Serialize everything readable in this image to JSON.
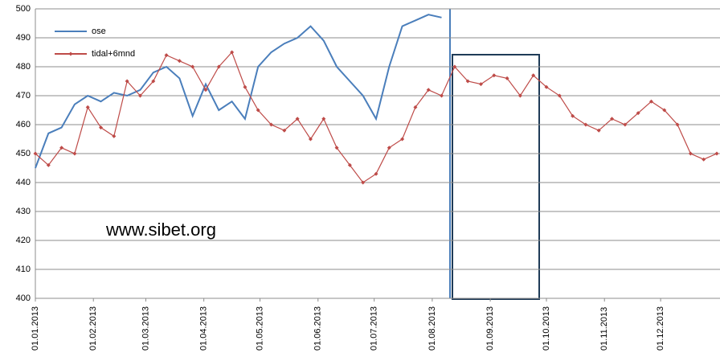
{
  "chart_data": {
    "type": "line",
    "x": [
      "2013-01-01",
      "2013-01-08",
      "2013-01-15",
      "2013-01-22",
      "2013-01-29",
      "2013-02-05",
      "2013-02-12",
      "2013-02-19",
      "2013-02-26",
      "2013-03-05",
      "2013-03-12",
      "2013-03-19",
      "2013-03-26",
      "2013-04-02",
      "2013-04-09",
      "2013-04-16",
      "2013-04-23",
      "2013-04-30",
      "2013-05-07",
      "2013-05-14",
      "2013-05-21",
      "2013-05-28",
      "2013-06-04",
      "2013-06-11",
      "2013-06-18",
      "2013-06-25",
      "2013-07-02",
      "2013-07-09",
      "2013-07-16",
      "2013-07-23",
      "2013-07-30",
      "2013-08-06",
      "2013-08-13",
      "2013-08-20",
      "2013-08-27",
      "2013-09-03",
      "2013-09-10",
      "2013-09-17",
      "2013-09-24",
      "2013-10-01",
      "2013-10-08",
      "2013-10-15",
      "2013-10-22",
      "2013-10-29",
      "2013-11-05",
      "2013-11-12",
      "2013-11-19",
      "2013-11-26",
      "2013-12-03",
      "2013-12-10",
      "2013-12-17",
      "2013-12-24",
      "2013-12-31"
    ],
    "series": [
      {
        "name": "ose",
        "color": "#4a7ebb",
        "markers": false,
        "values": [
          445,
          457,
          459,
          467,
          470,
          468,
          471,
          470,
          472,
          478,
          480,
          476,
          463,
          474,
          465,
          468,
          462,
          480,
          485,
          488,
          490,
          494,
          489,
          480,
          475,
          470,
          462,
          480,
          494,
          496,
          498,
          497,
          null,
          null,
          null,
          null,
          null,
          null,
          null,
          null,
          null,
          null,
          null,
          null,
          null,
          null,
          null,
          null,
          null,
          null,
          null,
          null,
          null
        ]
      },
      {
        "name": "tidal+6mnd",
        "color": "#be4b48",
        "markers": true,
        "values": [
          450,
          446,
          452,
          450,
          466,
          459,
          456,
          475,
          470,
          475,
          484,
          482,
          480,
          472,
          480,
          485,
          473,
          465,
          460,
          458,
          462,
          455,
          462,
          452,
          446,
          440,
          443,
          452,
          455,
          466,
          472,
          470,
          480,
          475,
          474,
          477,
          476,
          470,
          477,
          473,
          470,
          463,
          460,
          458,
          462,
          460,
          464,
          468,
          465,
          460,
          450,
          448,
          450
        ]
      }
    ],
    "xlim": [
      "2013-01-01",
      "2013-12-31"
    ],
    "xticks": [
      {
        "value": "2013-01-01",
        "label": "01.01.2013"
      },
      {
        "value": "2013-02-01",
        "label": "01.02.2013"
      },
      {
        "value": "2013-03-01",
        "label": "01.03.2013"
      },
      {
        "value": "2013-04-01",
        "label": "01.04.2013"
      },
      {
        "value": "2013-05-01",
        "label": "01.05.2013"
      },
      {
        "value": "2013-06-01",
        "label": "01.06.2013"
      },
      {
        "value": "2013-07-01",
        "label": "01.07.2013"
      },
      {
        "value": "2013-08-01",
        "label": "01.08.2013"
      },
      {
        "value": "2013-09-01",
        "label": "01.09.2013"
      },
      {
        "value": "2013-10-01",
        "label": "01.10.2013"
      },
      {
        "value": "2013-11-01",
        "label": "01.11.2013"
      },
      {
        "value": "2013-12-01",
        "label": "01.12.2013"
      }
    ],
    "ylim": [
      400,
      500
    ],
    "yticks": [
      400,
      410,
      420,
      430,
      440,
      450,
      460,
      470,
      480,
      490,
      500
    ],
    "grid": true,
    "legend": "upper left",
    "annotation": "www.sibet.org"
  }
}
